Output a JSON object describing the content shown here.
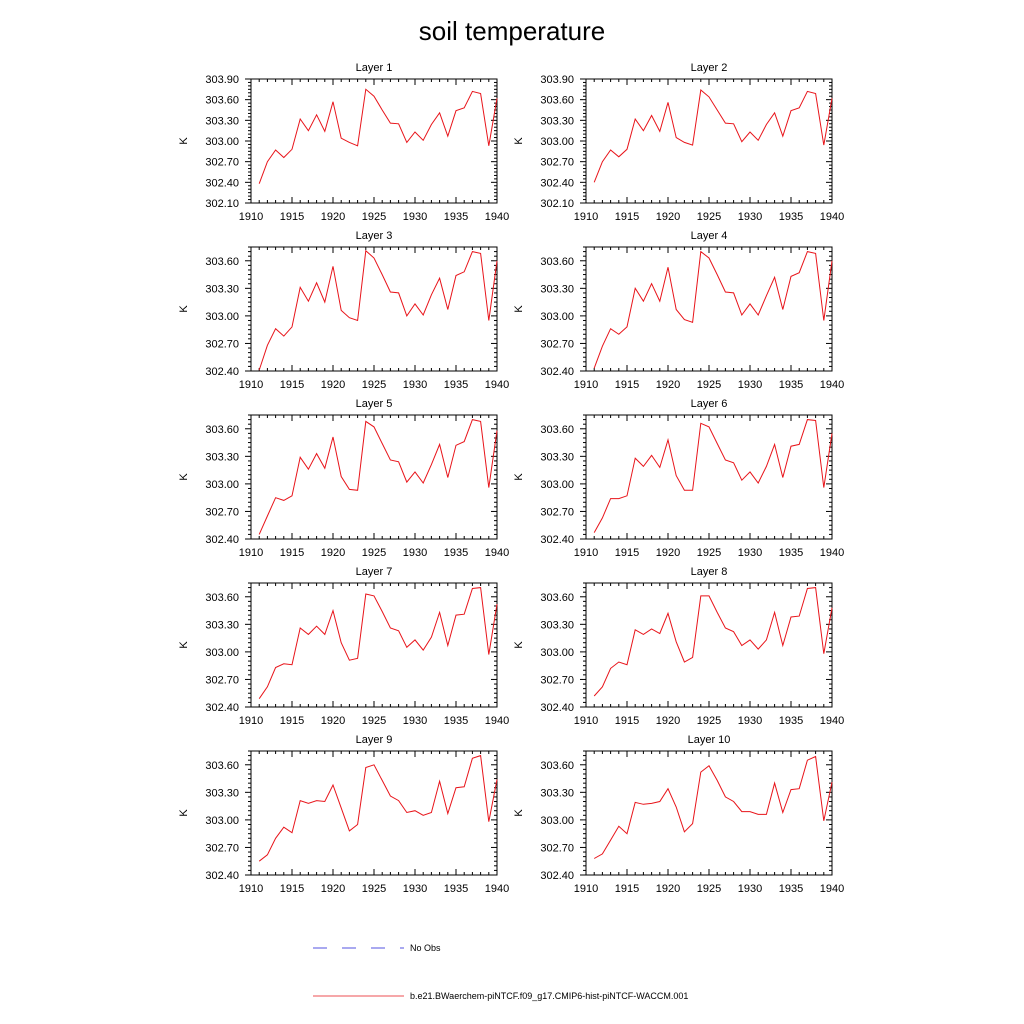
{
  "title": "soil temperature",
  "colors": {
    "model": "#e8141a",
    "obs": "#1b1bd6",
    "axis": "#000000"
  },
  "legend": {
    "obs_label": "No Obs",
    "model_label": "b.e21.BWaerchem-piNTCF.f09_g17.CMIP6-hist-piNTCF-WACCM.001"
  },
  "chart_data": [
    {
      "type": "line",
      "title": "Layer 1",
      "ylabel": "K",
      "xlim": [
        1910,
        1940
      ],
      "ylim": [
        302.1,
        303.9
      ],
      "xticks": [
        "1910",
        "1915",
        "1920",
        "1925",
        "1930",
        "1935",
        "1940"
      ],
      "yticks": [
        "302.10",
        "302.40",
        "302.70",
        "303.00",
        "303.30",
        "303.60",
        "303.90"
      ],
      "series": [
        {
          "x": [
            1911,
            1912,
            1913,
            1914,
            1915,
            1916,
            1917,
            1918,
            1919,
            1920,
            1921,
            1922,
            1923,
            1924,
            1925,
            1926,
            1927,
            1928,
            1929,
            1930,
            1931,
            1932,
            1933,
            1934,
            1935,
            1936,
            1937,
            1938,
            1939,
            1940
          ],
          "values": [
            302.38,
            302.7,
            302.87,
            302.76,
            302.88,
            303.32,
            303.15,
            303.38,
            303.14,
            303.57,
            303.04,
            302.98,
            302.93,
            303.75,
            303.65,
            303.45,
            303.26,
            303.25,
            302.98,
            303.13,
            303.01,
            303.24,
            303.41,
            303.07,
            303.44,
            303.48,
            303.72,
            303.69,
            302.93,
            303.62
          ]
        }
      ]
    },
    {
      "type": "line",
      "title": "Layer 2",
      "ylabel": "K",
      "xlim": [
        1910,
        1940
      ],
      "ylim": [
        302.1,
        303.9
      ],
      "xticks": [
        "1910",
        "1915",
        "1920",
        "1925",
        "1930",
        "1935",
        "1940"
      ],
      "yticks": [
        "302.10",
        "302.40",
        "302.70",
        "303.00",
        "303.30",
        "303.60",
        "303.90"
      ],
      "series": [
        {
          "x": [
            1911,
            1912,
            1913,
            1914,
            1915,
            1916,
            1917,
            1918,
            1919,
            1920,
            1921,
            1922,
            1923,
            1924,
            1925,
            1926,
            1927,
            1928,
            1929,
            1930,
            1931,
            1932,
            1933,
            1934,
            1935,
            1936,
            1937,
            1938,
            1939,
            1940
          ],
          "values": [
            302.4,
            302.7,
            302.87,
            302.77,
            302.88,
            303.32,
            303.15,
            303.37,
            303.14,
            303.56,
            303.05,
            302.98,
            302.94,
            303.74,
            303.64,
            303.45,
            303.26,
            303.25,
            302.99,
            303.13,
            303.01,
            303.24,
            303.41,
            303.07,
            303.44,
            303.48,
            303.72,
            303.69,
            302.94,
            303.62
          ]
        }
      ]
    },
    {
      "type": "line",
      "title": "Layer 3",
      "ylabel": "K",
      "xlim": [
        1910,
        1940
      ],
      "ylim": [
        302.4,
        303.75
      ],
      "xticks": [
        "1910",
        "1915",
        "1920",
        "1925",
        "1930",
        "1935",
        "1940"
      ],
      "yticks": [
        "302.40",
        "302.70",
        "303.00",
        "303.30",
        "303.60"
      ],
      "series": [
        {
          "x": [
            1911,
            1912,
            1913,
            1914,
            1915,
            1916,
            1917,
            1918,
            1919,
            1920,
            1921,
            1922,
            1923,
            1924,
            1925,
            1926,
            1927,
            1928,
            1929,
            1930,
            1931,
            1932,
            1933,
            1934,
            1935,
            1936,
            1937,
            1938,
            1939,
            1940
          ],
          "values": [
            302.41,
            302.68,
            302.86,
            302.78,
            302.88,
            303.31,
            303.16,
            303.36,
            303.15,
            303.54,
            303.06,
            302.98,
            302.95,
            303.71,
            303.63,
            303.45,
            303.26,
            303.25,
            303.0,
            303.13,
            303.01,
            303.23,
            303.41,
            303.07,
            303.44,
            303.48,
            303.7,
            303.68,
            302.95,
            303.6
          ]
        }
      ]
    },
    {
      "type": "line",
      "title": "Layer 4",
      "ylabel": "K",
      "xlim": [
        1910,
        1940
      ],
      "ylim": [
        302.4,
        303.75
      ],
      "xticks": [
        "1910",
        "1915",
        "1920",
        "1925",
        "1930",
        "1935",
        "1940"
      ],
      "yticks": [
        "302.40",
        "302.70",
        "303.00",
        "303.30",
        "303.60"
      ],
      "series": [
        {
          "x": [
            1911,
            1912,
            1913,
            1914,
            1915,
            1916,
            1917,
            1918,
            1919,
            1920,
            1921,
            1922,
            1923,
            1924,
            1925,
            1926,
            1927,
            1928,
            1929,
            1930,
            1931,
            1932,
            1933,
            1934,
            1935,
            1936,
            1937,
            1938,
            1939,
            1940
          ],
          "values": [
            302.43,
            302.67,
            302.86,
            302.8,
            302.88,
            303.3,
            303.16,
            303.35,
            303.16,
            303.53,
            303.07,
            302.96,
            302.93,
            303.7,
            303.63,
            303.45,
            303.26,
            303.25,
            303.01,
            303.13,
            303.01,
            303.22,
            303.42,
            303.07,
            303.43,
            303.47,
            303.7,
            303.68,
            302.95,
            303.6
          ]
        }
      ]
    },
    {
      "type": "line",
      "title": "Layer 5",
      "ylabel": "K",
      "xlim": [
        1910,
        1940
      ],
      "ylim": [
        302.4,
        303.75
      ],
      "xticks": [
        "1910",
        "1915",
        "1920",
        "1925",
        "1930",
        "1935",
        "1940"
      ],
      "yticks": [
        "302.40",
        "302.70",
        "303.00",
        "303.30",
        "303.60"
      ],
      "series": [
        {
          "x": [
            1911,
            1912,
            1913,
            1914,
            1915,
            1916,
            1917,
            1918,
            1919,
            1920,
            1921,
            1922,
            1923,
            1924,
            1925,
            1926,
            1927,
            1928,
            1929,
            1930,
            1931,
            1932,
            1933,
            1934,
            1935,
            1936,
            1937,
            1938,
            1939,
            1940
          ],
          "values": [
            302.45,
            302.65,
            302.85,
            302.82,
            302.87,
            303.29,
            303.16,
            303.33,
            303.17,
            303.51,
            303.08,
            302.94,
            302.93,
            303.68,
            303.62,
            303.44,
            303.26,
            303.24,
            303.02,
            303.13,
            303.01,
            303.21,
            303.43,
            303.07,
            303.42,
            303.46,
            303.7,
            303.68,
            302.96,
            303.58
          ]
        }
      ]
    },
    {
      "type": "line",
      "title": "Layer 6",
      "ylabel": "K",
      "xlim": [
        1910,
        1940
      ],
      "ylim": [
        302.4,
        303.75
      ],
      "xticks": [
        "1910",
        "1915",
        "1920",
        "1925",
        "1930",
        "1935",
        "1940"
      ],
      "yticks": [
        "302.40",
        "302.70",
        "303.00",
        "303.30",
        "303.60"
      ],
      "series": [
        {
          "x": [
            1911,
            1912,
            1913,
            1914,
            1915,
            1916,
            1917,
            1918,
            1919,
            1920,
            1921,
            1922,
            1923,
            1924,
            1925,
            1926,
            1927,
            1928,
            1929,
            1930,
            1931,
            1932,
            1933,
            1934,
            1935,
            1936,
            1937,
            1938,
            1939,
            1940
          ],
          "values": [
            302.47,
            302.63,
            302.84,
            302.84,
            302.87,
            303.28,
            303.19,
            303.31,
            303.18,
            303.48,
            303.09,
            302.93,
            302.93,
            303.66,
            303.62,
            303.44,
            303.26,
            303.23,
            303.04,
            303.13,
            303.01,
            303.19,
            303.43,
            303.07,
            303.41,
            303.43,
            303.7,
            303.69,
            302.96,
            303.55
          ]
        }
      ]
    },
    {
      "type": "line",
      "title": "Layer 7",
      "ylabel": "K",
      "xlim": [
        1910,
        1940
      ],
      "ylim": [
        302.4,
        303.75
      ],
      "xticks": [
        "1910",
        "1915",
        "1920",
        "1925",
        "1930",
        "1935",
        "1940"
      ],
      "yticks": [
        "302.40",
        "302.70",
        "303.00",
        "303.30",
        "303.60"
      ],
      "series": [
        {
          "x": [
            1911,
            1912,
            1913,
            1914,
            1915,
            1916,
            1917,
            1918,
            1919,
            1920,
            1921,
            1922,
            1923,
            1924,
            1925,
            1926,
            1927,
            1928,
            1929,
            1930,
            1931,
            1932,
            1933,
            1934,
            1935,
            1936,
            1937,
            1938,
            1939,
            1940
          ],
          "values": [
            302.49,
            302.62,
            302.83,
            302.87,
            302.86,
            303.26,
            303.19,
            303.28,
            303.19,
            303.45,
            303.1,
            302.91,
            302.93,
            303.63,
            303.61,
            303.44,
            303.26,
            303.23,
            303.05,
            303.13,
            303.02,
            303.16,
            303.43,
            303.07,
            303.4,
            303.41,
            303.69,
            303.7,
            302.97,
            303.52
          ]
        }
      ]
    },
    {
      "type": "line",
      "title": "Layer 8",
      "ylabel": "K",
      "xlim": [
        1910,
        1940
      ],
      "ylim": [
        302.4,
        303.75
      ],
      "xticks": [
        "1910",
        "1915",
        "1920",
        "1925",
        "1930",
        "1935",
        "1940"
      ],
      "yticks": [
        "302.40",
        "302.70",
        "303.00",
        "303.30",
        "303.60"
      ],
      "series": [
        {
          "x": [
            1911,
            1912,
            1913,
            1914,
            1915,
            1916,
            1917,
            1918,
            1919,
            1920,
            1921,
            1922,
            1923,
            1924,
            1925,
            1926,
            1927,
            1928,
            1929,
            1930,
            1931,
            1932,
            1933,
            1934,
            1935,
            1936,
            1937,
            1938,
            1939,
            1940
          ],
          "values": [
            302.52,
            302.62,
            302.82,
            302.89,
            302.86,
            303.24,
            303.19,
            303.25,
            303.2,
            303.42,
            303.11,
            302.89,
            302.94,
            303.61,
            303.61,
            303.43,
            303.26,
            303.22,
            303.07,
            303.13,
            303.03,
            303.13,
            303.43,
            303.07,
            303.38,
            303.39,
            303.69,
            303.7,
            302.98,
            303.48
          ]
        }
      ]
    },
    {
      "type": "line",
      "title": "Layer 9",
      "ylabel": "K",
      "xlim": [
        1910,
        1940
      ],
      "ylim": [
        302.4,
        303.75
      ],
      "xticks": [
        "1910",
        "1915",
        "1920",
        "1925",
        "1930",
        "1935",
        "1940"
      ],
      "yticks": [
        "302.40",
        "302.70",
        "303.00",
        "303.30",
        "303.60"
      ],
      "series": [
        {
          "x": [
            1911,
            1912,
            1913,
            1914,
            1915,
            1916,
            1917,
            1918,
            1919,
            1920,
            1921,
            1922,
            1923,
            1924,
            1925,
            1926,
            1927,
            1928,
            1929,
            1930,
            1931,
            1932,
            1933,
            1934,
            1935,
            1936,
            1937,
            1938,
            1939,
            1940
          ],
          "values": [
            302.55,
            302.62,
            302.8,
            302.92,
            302.86,
            303.21,
            303.18,
            303.21,
            303.2,
            303.38,
            303.13,
            302.88,
            302.95,
            303.57,
            303.6,
            303.43,
            303.26,
            303.21,
            303.08,
            303.1,
            303.05,
            303.08,
            303.42,
            303.07,
            303.35,
            303.36,
            303.67,
            303.7,
            302.98,
            303.44
          ]
        }
      ]
    },
    {
      "type": "line",
      "title": "Layer 10",
      "ylabel": "K",
      "xlim": [
        1910,
        1940
      ],
      "ylim": [
        302.4,
        303.75
      ],
      "xticks": [
        "1910",
        "1915",
        "1920",
        "1925",
        "1930",
        "1935",
        "1940"
      ],
      "yticks": [
        "302.40",
        "302.70",
        "303.00",
        "303.30",
        "303.60"
      ],
      "series": [
        {
          "x": [
            1911,
            1912,
            1913,
            1914,
            1915,
            1916,
            1917,
            1918,
            1919,
            1920,
            1921,
            1922,
            1923,
            1924,
            1925,
            1926,
            1927,
            1928,
            1929,
            1930,
            1931,
            1932,
            1933,
            1934,
            1935,
            1936,
            1937,
            1938,
            1939,
            1940
          ],
          "values": [
            302.58,
            302.63,
            302.78,
            302.93,
            302.85,
            303.19,
            303.17,
            303.18,
            303.2,
            303.34,
            303.14,
            302.87,
            302.96,
            303.52,
            303.59,
            303.43,
            303.25,
            303.2,
            303.09,
            303.09,
            303.06,
            303.06,
            303.4,
            303.08,
            303.33,
            303.34,
            303.65,
            303.69,
            302.99,
            303.41
          ]
        }
      ]
    }
  ]
}
